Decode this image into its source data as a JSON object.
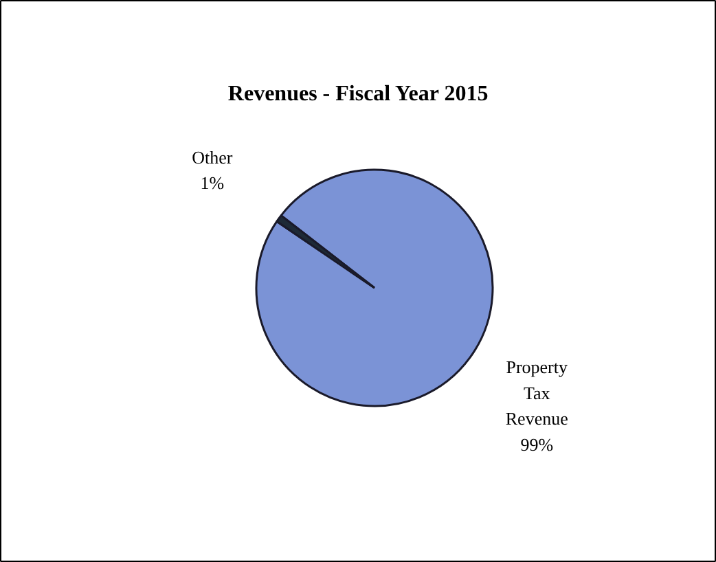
{
  "chart_data": {
    "type": "pie",
    "title": "Revenues - Fiscal Year 2015",
    "categories": [
      "Property Tax Revenue",
      "Other"
    ],
    "values": [
      99,
      1
    ],
    "colors": [
      "#7b93d6",
      "#1e2a36"
    ],
    "value_labels": [
      "99%",
      "1%"
    ]
  }
}
